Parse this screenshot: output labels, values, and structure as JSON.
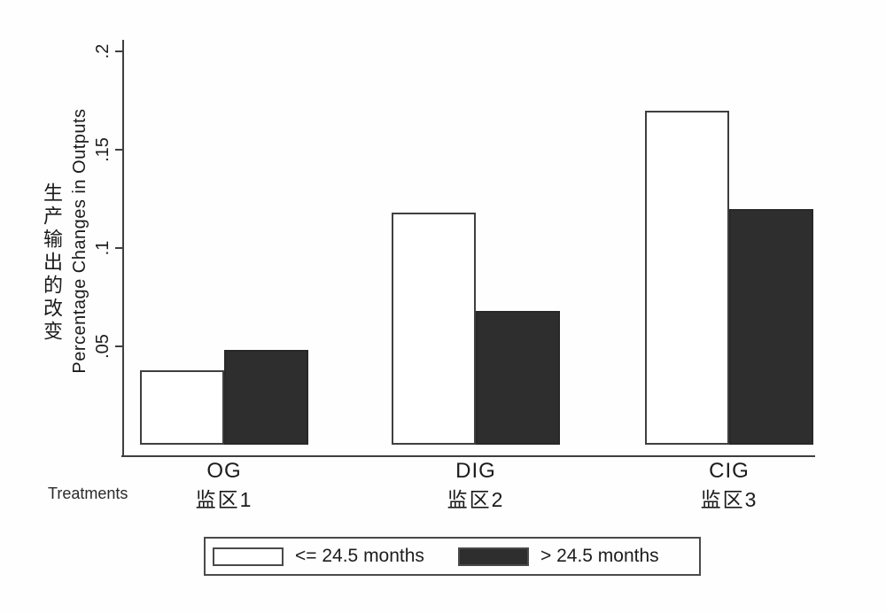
{
  "figure": {
    "ylabel_zh": "生产输出的改变",
    "ylabel_en": "Percentage Changes in Outputs",
    "xlabel": "Treatments"
  },
  "legend": {
    "items": [
      {
        "label": "<= 24.5 months",
        "color": "#ffffff"
      },
      {
        "label": "> 24.5 months",
        "color": "#2e2e2e"
      }
    ]
  },
  "chart_data": {
    "type": "bar",
    "title": "",
    "categories": [
      {
        "code": "OG",
        "label_zh": "监区1"
      },
      {
        "code": "DIG",
        "label_zh": "监区2"
      },
      {
        "code": "CIG",
        "label_zh": "监区3"
      }
    ],
    "series": [
      {
        "name": "<= 24.5 months",
        "color": "#ffffff",
        "values": [
          0.038,
          0.118,
          0.17
        ]
      },
      {
        "name": "> 24.5 months",
        "color": "#2e2e2e",
        "values": [
          0.048,
          0.068,
          0.12
        ]
      }
    ],
    "xlabel": "Treatments",
    "ylabel_zh": "生产输出的改变",
    "ylabel_en": "Percentage Changes in Outputs",
    "yticks": [
      {
        "label": ".05",
        "value": 0.05
      },
      {
        "label": ".1",
        "value": 0.1
      },
      {
        "label": ".15",
        "value": 0.15
      },
      {
        "label": ".2",
        "value": 0.2
      }
    ],
    "ylim": [
      0,
      0.2
    ],
    "grid": false,
    "legend_position": "bottom"
  }
}
